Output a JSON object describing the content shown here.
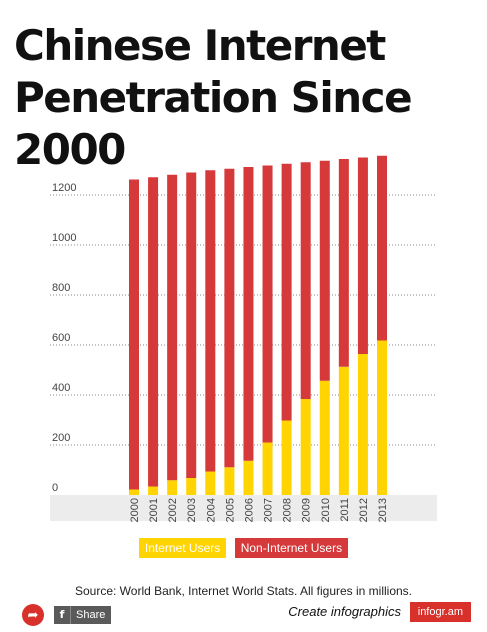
{
  "title_line1": "Chinese Internet",
  "title_line2": "Penetration Since 2000",
  "colors": {
    "internet": "#ffd400",
    "non_internet": "#d5393a",
    "axis_band": "#ececec"
  },
  "legend": {
    "internet_label": "Internet Users",
    "non_internet_label": "Non-Internet Users"
  },
  "source": "Source: World Bank, Internet World Stats. All figures in millions.",
  "footer": {
    "share_label": "Share",
    "create_label": "Create infographics",
    "brand_label": "infogr.am"
  },
  "chart_data": {
    "type": "bar",
    "stacked": true,
    "categories": [
      "2000",
      "2001",
      "2002",
      "2003",
      "2004",
      "2005",
      "2006",
      "2007",
      "2008",
      "2009",
      "2010",
      "2011",
      "2012",
      "2013"
    ],
    "series": [
      {
        "name": "Internet Users",
        "values": [
          22,
          34,
          59,
          68,
          94,
          111,
          137,
          210,
          298,
          384,
          457,
          513,
          564,
          618
        ]
      },
      {
        "name": "Non-Internet Users",
        "values": [
          1240,
          1237,
          1222,
          1222,
          1205,
          1194,
          1175,
          1108,
          1027,
          947,
          880,
          831,
          786,
          739
        ]
      }
    ],
    "y_ticks": [
      0,
      200,
      400,
      600,
      800,
      1000,
      1200
    ],
    "ylim": [
      0,
      1400
    ],
    "grid": true,
    "legend_position": "bottom"
  }
}
